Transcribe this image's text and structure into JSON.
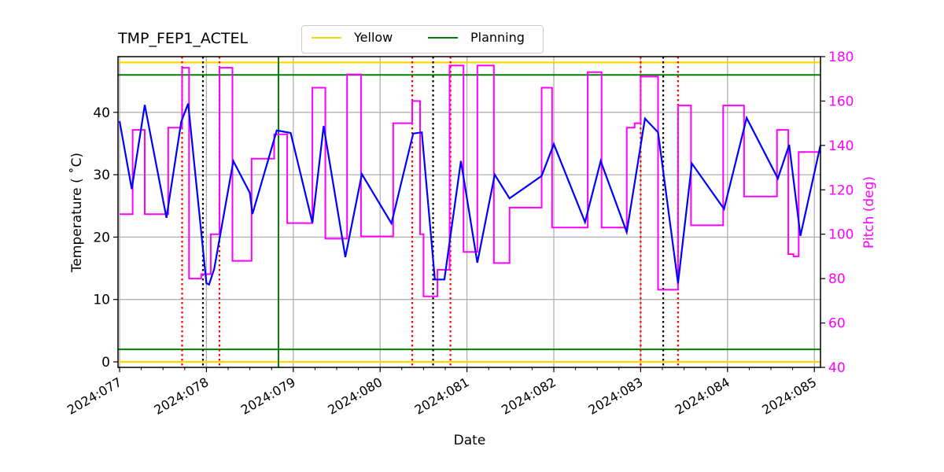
{
  "title": "TMP_FEP1_ACTEL",
  "legend": [
    {
      "label": "Yellow",
      "color": "#ffd700"
    },
    {
      "label": "Planning",
      "color": "#008000"
    }
  ],
  "axes": {
    "xlabel": "Date",
    "ylabel": "Temperature ($^\\circ$C)",
    "ylabel_display": "Temperature ( ˚C)",
    "y2label": "Pitch (deg)",
    "xticks": [
      "2024:077",
      "2024:078",
      "2024:079",
      "2024:080",
      "2024:081",
      "2024:082",
      "2024:083",
      "2024:084",
      "2024:085"
    ],
    "yticks": [
      "0",
      "10",
      "20",
      "30",
      "40"
    ],
    "y2ticks": [
      "40",
      "60",
      "80",
      "100",
      "120",
      "140",
      "160",
      "180"
    ]
  },
  "colors": {
    "temperature": "#0000ff",
    "pitch": "#ff00ff",
    "yellow_limit": "#ffd700",
    "planning_limit": "#008000",
    "red_marker": "#ff0000",
    "black_marker": "#000000",
    "grid": "#b0b0b0"
  },
  "chart_data": {
    "type": "line",
    "title": "TMP_FEP1_ACTEL",
    "xlabel": "Date",
    "ylabel": "Temperature (°C)",
    "y2label": "Pitch (deg)",
    "xlim": [
      76.99,
      85.08
    ],
    "ylim": [
      -0.9,
      49.0
    ],
    "y2lim": [
      40,
      180
    ],
    "x_unit": "day of year 2024",
    "grid": true,
    "legend_position": "top center, above axes",
    "limits": {
      "yellow": [
        0,
        48
      ],
      "planning": [
        2,
        46
      ]
    },
    "vlines": {
      "planning_green": [
        78.83
      ],
      "red_dotted": [
        77.72,
        78.15,
        80.37,
        80.81,
        83.0,
        83.43
      ],
      "black_dotted": [
        77.96,
        80.61,
        83.26
      ]
    },
    "series": [
      {
        "name": "TMP_FEP1_ACTEL",
        "axis": "left",
        "color": "#0000ff",
        "points": [
          [
            77.0,
            38.6
          ],
          [
            77.14,
            27.7
          ],
          [
            77.29,
            41.2
          ],
          [
            77.54,
            23.1
          ],
          [
            77.71,
            38.5
          ],
          [
            77.79,
            41.4
          ],
          [
            78.0,
            12.6
          ],
          [
            78.03,
            12.4
          ],
          [
            78.09,
            14.9
          ],
          [
            78.31,
            32.2
          ],
          [
            78.5,
            27.1
          ],
          [
            78.53,
            23.7
          ],
          [
            78.81,
            37.1
          ],
          [
            78.97,
            36.7
          ],
          [
            79.22,
            22.3
          ],
          [
            79.35,
            37.8
          ],
          [
            79.6,
            16.8
          ],
          [
            79.79,
            30.1
          ],
          [
            80.13,
            22.2
          ],
          [
            80.38,
            36.6
          ],
          [
            80.48,
            36.8
          ],
          [
            80.63,
            13.2
          ],
          [
            80.74,
            13.2
          ],
          [
            80.93,
            32.2
          ],
          [
            81.12,
            15.9
          ],
          [
            81.32,
            30.0
          ],
          [
            81.49,
            26.2
          ],
          [
            81.86,
            29.8
          ],
          [
            82.0,
            34.9
          ],
          [
            82.36,
            22.4
          ],
          [
            82.54,
            32.2
          ],
          [
            82.84,
            20.8
          ],
          [
            83.05,
            39.0
          ],
          [
            83.2,
            36.8
          ],
          [
            83.43,
            12.6
          ],
          [
            83.59,
            31.8
          ],
          [
            83.96,
            24.5
          ],
          [
            84.22,
            39.1
          ],
          [
            84.58,
            29.4
          ],
          [
            84.71,
            34.8
          ],
          [
            84.84,
            20.2
          ],
          [
            85.07,
            34.7
          ]
        ]
      },
      {
        "name": "Pitch",
        "axis": "right",
        "color": "#ff00ff",
        "steps": [
          [
            77.0,
            109
          ],
          [
            77.15,
            147
          ],
          [
            77.29,
            109
          ],
          [
            77.56,
            148
          ],
          [
            77.72,
            175
          ],
          [
            77.8,
            80
          ],
          [
            77.94,
            82
          ],
          [
            78.05,
            100
          ],
          [
            78.15,
            175
          ],
          [
            78.3,
            88
          ],
          [
            78.52,
            134
          ],
          [
            78.78,
            145
          ],
          [
            78.93,
            105
          ],
          [
            79.22,
            166
          ],
          [
            79.37,
            98
          ],
          [
            79.62,
            172
          ],
          [
            79.78,
            99
          ],
          [
            80.15,
            150
          ],
          [
            80.37,
            160
          ],
          [
            80.46,
            100
          ],
          [
            80.5,
            72
          ],
          [
            80.66,
            84
          ],
          [
            80.8,
            176
          ],
          [
            80.96,
            92
          ],
          [
            81.12,
            176
          ],
          [
            81.31,
            87
          ],
          [
            81.49,
            112
          ],
          [
            81.86,
            166
          ],
          [
            81.98,
            103
          ],
          [
            82.39,
            173
          ],
          [
            82.55,
            103
          ],
          [
            82.84,
            148
          ],
          [
            82.93,
            150
          ],
          [
            83.0,
            171
          ],
          [
            83.2,
            75
          ],
          [
            83.43,
            158
          ],
          [
            83.58,
            104
          ],
          [
            83.95,
            158
          ],
          [
            84.19,
            117
          ],
          [
            84.57,
            147
          ],
          [
            84.7,
            91
          ],
          [
            84.76,
            90
          ],
          [
            84.82,
            137
          ],
          [
            85.08,
            137
          ]
        ]
      }
    ]
  }
}
